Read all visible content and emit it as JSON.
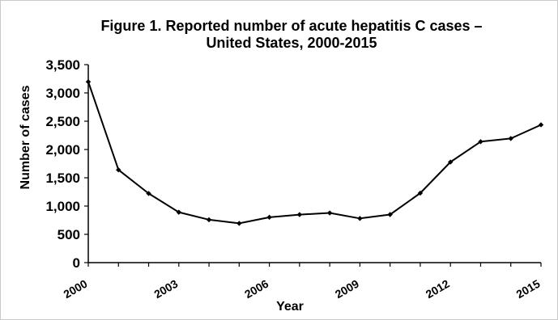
{
  "chart_data": {
    "type": "line",
    "title_line1": "Figure 1. Reported number of acute hepatitis C cases –",
    "title_line2": "United States, 2000-2015",
    "xlabel": "Year",
    "ylabel": "Number of cases",
    "x": [
      2000,
      2001,
      2002,
      2003,
      2004,
      2005,
      2006,
      2007,
      2008,
      2009,
      2010,
      2011,
      2012,
      2013,
      2014,
      2015
    ],
    "values": [
      3197,
      1640,
      1223,
      891,
      758,
      694,
      802,
      849,
      878,
      781,
      850,
      1229,
      1778,
      2138,
      2194,
      2436
    ],
    "ylim": [
      0,
      3500
    ],
    "y_ticks": [
      "0",
      "500",
      "1,000",
      "1,500",
      "2,000",
      "2,500",
      "3,000",
      "3,500"
    ],
    "x_tick_labels": [
      "2000",
      "2003",
      "2006",
      "2009",
      "2012",
      "2015"
    ],
    "grid": false,
    "line_color": "#000000"
  }
}
